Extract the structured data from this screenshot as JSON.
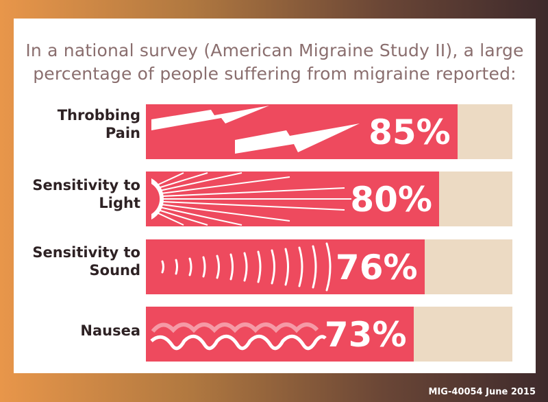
{
  "title_line1": "In a national survey (American Migraine Study II), a large",
  "title_line2": "percentage of people suffering from migraine reported:",
  "footer": "MIG-40054 June 2015",
  "colors": {
    "fill": "#ee4a5e",
    "track": "#ecdac3",
    "text": "#2e2224",
    "title": "#8a6e6e"
  },
  "chart_data": {
    "type": "bar",
    "orientation": "horizontal",
    "ylim": [
      0,
      100
    ],
    "categories": [
      {
        "line1": "Throbbing",
        "line2": "Pain",
        "icon": "lightning-bolt-icon"
      },
      {
        "line1": "Sensitivity to",
        "line2": "Light",
        "icon": "sun-rays-icon"
      },
      {
        "line1": "Sensitivity to",
        "line2": "Sound",
        "icon": "sound-waves-icon"
      },
      {
        "line1": "Nausea",
        "line2": "",
        "icon": "waves-icon"
      }
    ],
    "values": [
      85,
      80,
      76,
      73
    ],
    "labels": [
      "85%",
      "80%",
      "76%",
      "73%"
    ]
  }
}
